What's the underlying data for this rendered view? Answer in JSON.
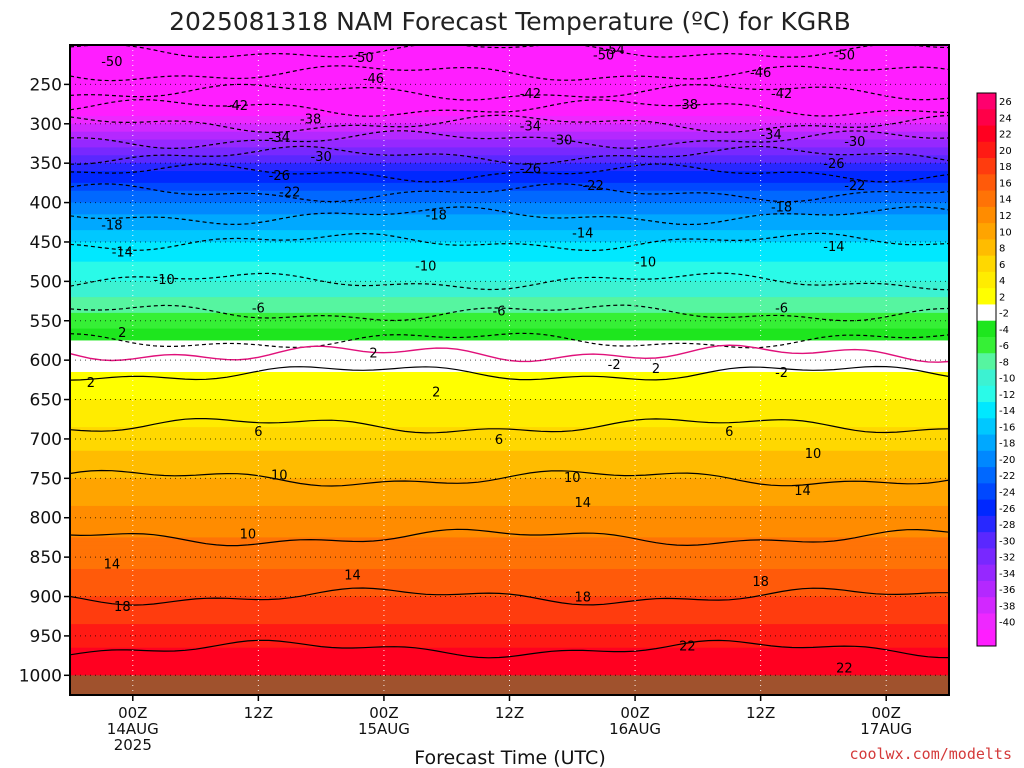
{
  "chart_data": {
    "type": "heatmap",
    "title": "2025081318 NAM Forecast Temperature (ºC) for KGRB",
    "xlabel": "Forecast Time (UTC)",
    "ylabel": "",
    "x_ticks": [
      {
        "hours": 6,
        "lines": [
          "00Z",
          "14AUG",
          "2025"
        ]
      },
      {
        "hours": 18,
        "lines": [
          "12Z"
        ]
      },
      {
        "hours": 30,
        "lines": [
          "00Z",
          "15AUG"
        ]
      },
      {
        "hours": 42,
        "lines": [
          "12Z"
        ]
      },
      {
        "hours": 54,
        "lines": [
          "00Z",
          "16AUG"
        ]
      },
      {
        "hours": 66,
        "lines": [
          "12Z"
        ]
      },
      {
        "hours": 78,
        "lines": [
          "00Z",
          "17AUG"
        ]
      }
    ],
    "x_range_hours": [
      0,
      84
    ],
    "y_ticks": [
      "250",
      "300",
      "350",
      "400",
      "450",
      "500",
      "550",
      "600",
      "650",
      "700",
      "750",
      "800",
      "850",
      "900",
      "950",
      "1000"
    ],
    "y_range_hpa": [
      200,
      1025
    ],
    "temperature_profile": [
      {
        "p": 200,
        "t": -55
      },
      {
        "p": 250,
        "t": -48
      },
      {
        "p": 300,
        "t": -38
      },
      {
        "p": 350,
        "t": -28
      },
      {
        "p": 400,
        "t": -20
      },
      {
        "p": 450,
        "t": -14
      },
      {
        "p": 500,
        "t": -10
      },
      {
        "p": 550,
        "t": -5
      },
      {
        "p": 575,
        "t": -2
      },
      {
        "p": 600,
        "t": 1
      },
      {
        "p": 650,
        "t": 4
      },
      {
        "p": 700,
        "t": 7
      },
      {
        "p": 750,
        "t": 10
      },
      {
        "p": 800,
        "t": 13
      },
      {
        "p": 850,
        "t": 15
      },
      {
        "p": 900,
        "t": 18
      },
      {
        "p": 950,
        "t": 21
      },
      {
        "p": 1000,
        "t": 24
      }
    ],
    "contour_labels": [
      {
        "text": "-54",
        "hours": 52,
        "p": 205
      },
      {
        "text": "-50",
        "hours": 4,
        "p": 220
      },
      {
        "text": "-50",
        "hours": 28,
        "p": 215
      },
      {
        "text": "-50",
        "hours": 51,
        "p": 212
      },
      {
        "text": "-50",
        "hours": 74,
        "p": 212
      },
      {
        "text": "-46",
        "hours": 29,
        "p": 242
      },
      {
        "text": "-46",
        "hours": 66,
        "p": 234
      },
      {
        "text": "-42",
        "hours": 16,
        "p": 276
      },
      {
        "text": "-42",
        "hours": 44,
        "p": 261
      },
      {
        "text": "-42",
        "hours": 68,
        "p": 261
      },
      {
        "text": "-38",
        "hours": 23,
        "p": 293
      },
      {
        "text": "-38",
        "hours": 59,
        "p": 275
      },
      {
        "text": "-34",
        "hours": 20,
        "p": 317
      },
      {
        "text": "-34",
        "hours": 44,
        "p": 302
      },
      {
        "text": "-34",
        "hours": 67,
        "p": 313
      },
      {
        "text": "-30",
        "hours": 24,
        "p": 341
      },
      {
        "text": "-30",
        "hours": 47,
        "p": 320
      },
      {
        "text": "-30",
        "hours": 75,
        "p": 322
      },
      {
        "text": "-26",
        "hours": 20,
        "p": 365
      },
      {
        "text": "-26",
        "hours": 44,
        "p": 356
      },
      {
        "text": "-26",
        "hours": 73,
        "p": 350
      },
      {
        "text": "-22",
        "hours": 21,
        "p": 386
      },
      {
        "text": "-22",
        "hours": 50,
        "p": 378
      },
      {
        "text": "-22",
        "hours": 75,
        "p": 378
      },
      {
        "text": "-18",
        "hours": 4,
        "p": 428
      },
      {
        "text": "-18",
        "hours": 35,
        "p": 415
      },
      {
        "text": "-18",
        "hours": 68,
        "p": 405
      },
      {
        "text": "-14",
        "hours": 5,
        "p": 462
      },
      {
        "text": "-14",
        "hours": 49,
        "p": 438
      },
      {
        "text": "-14",
        "hours": 73,
        "p": 455
      },
      {
        "text": "-10",
        "hours": 9,
        "p": 497
      },
      {
        "text": "-10",
        "hours": 34,
        "p": 480
      },
      {
        "text": "-10",
        "hours": 55,
        "p": 475
      },
      {
        "text": "-6",
        "hours": 18,
        "p": 533
      },
      {
        "text": "-6",
        "hours": 41,
        "p": 537
      },
      {
        "text": "-6",
        "hours": 68,
        "p": 533
      },
      {
        "text": "2",
        "hours": 5,
        "p": 564
      },
      {
        "text": "2",
        "hours": 29,
        "p": 590
      },
      {
        "text": "-2",
        "hours": 52,
        "p": 605
      },
      {
        "text": "-2",
        "hours": 68,
        "p": 615
      },
      {
        "text": "2",
        "hours": 2,
        "p": 628
      },
      {
        "text": "2",
        "hours": 35,
        "p": 640
      },
      {
        "text": "2",
        "hours": 56,
        "p": 610
      },
      {
        "text": "6",
        "hours": 18,
        "p": 690
      },
      {
        "text": "6",
        "hours": 41,
        "p": 700
      },
      {
        "text": "6",
        "hours": 63,
        "p": 690
      },
      {
        "text": "10",
        "hours": 20,
        "p": 745
      },
      {
        "text": "10",
        "hours": 48,
        "p": 748
      },
      {
        "text": "10",
        "hours": 71,
        "p": 718
      },
      {
        "text": "10",
        "hours": 17,
        "p": 820
      },
      {
        "text": "14",
        "hours": 49,
        "p": 780
      },
      {
        "text": "14",
        "hours": 70,
        "p": 765
      },
      {
        "text": "14",
        "hours": 4,
        "p": 858
      },
      {
        "text": "14",
        "hours": 27,
        "p": 872
      },
      {
        "text": "18",
        "hours": 5,
        "p": 912
      },
      {
        "text": "18",
        "hours": 49,
        "p": 900
      },
      {
        "text": "18",
        "hours": 66,
        "p": 880
      },
      {
        "text": "22",
        "hours": 59,
        "p": 962
      },
      {
        "text": "22",
        "hours": 74,
        "p": 990
      }
    ],
    "colorbar": {
      "labels": [
        "26",
        "24",
        "22",
        "20",
        "18",
        "16",
        "14",
        "12",
        "10",
        "8",
        "6",
        "4",
        "2",
        "-2",
        "-4",
        "-6",
        "-8",
        "-10",
        "-12",
        "-14",
        "-16",
        "-18",
        "-20",
        "-22",
        "-24",
        "-26",
        "-28",
        "-30",
        "-32",
        "-34",
        "-36",
        "-38",
        "-40"
      ],
      "colors": [
        "#ff006e",
        "#ff0048",
        "#ff0020",
        "#ff1a14",
        "#ff3c0e",
        "#ff5a0a",
        "#ff7306",
        "#ff8c00",
        "#ffa400",
        "#ffbc00",
        "#ffd800",
        "#ffec00",
        "#ffff00",
        "#ffffff",
        "#1ee61e",
        "#36f036",
        "#56f5a0",
        "#3cf2d2",
        "#2afae8",
        "#00e8ff",
        "#00c8ff",
        "#00a8ff",
        "#0088ff",
        "#0068ff",
        "#0048ff",
        "#0028ff",
        "#2828ff",
        "#5a28ff",
        "#7828ff",
        "#9628ff",
        "#b428ff",
        "#d228ff",
        "#ee28ff",
        "#ff1eff"
      ]
    },
    "freezing_line_color": "#e0107a",
    "ground_color": "#a0522d",
    "legend": "right"
  },
  "credit": "coolwx.com/modelts"
}
